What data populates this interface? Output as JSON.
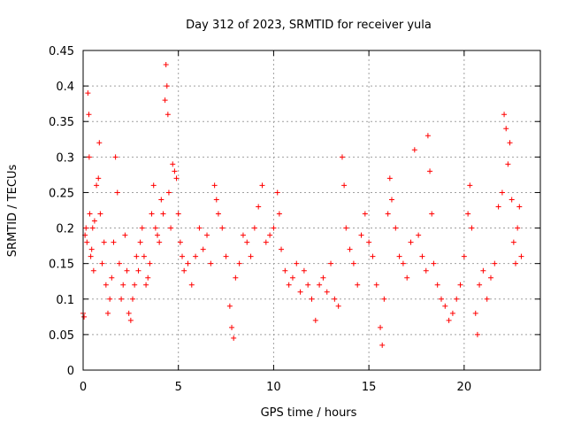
{
  "chart_data": {
    "type": "scatter",
    "title": "Day 312 of 2023, SRMTID for receiver yula",
    "xlabel": "GPS time / hours",
    "ylabel": "SRMTID / TECUs",
    "xlim": [
      0,
      24
    ],
    "ylim": [
      0,
      0.45
    ],
    "xticks": [
      0,
      5,
      10,
      15,
      20
    ],
    "yticks": [
      0,
      0.05,
      0.1,
      0.15,
      0.2,
      0.25,
      0.3,
      0.35,
      0.4,
      0.45
    ],
    "xtick_labels": [
      "0",
      "5",
      "10",
      "15",
      "20"
    ],
    "ytick_labels": [
      "0",
      "0.05",
      "0.1",
      "0.15",
      "0.2",
      "0.25",
      "0.3",
      "0.35",
      "0.4",
      "0.45"
    ],
    "grid": true,
    "marker": "+",
    "color": "#ff0000",
    "series": [
      {
        "name": "SRMTID",
        "points": [
          [
            0.0,
            0.08
          ],
          [
            0.05,
            0.075
          ],
          [
            0.1,
            0.19
          ],
          [
            0.15,
            0.2
          ],
          [
            0.2,
            0.18
          ],
          [
            0.25,
            0.39
          ],
          [
            0.3,
            0.36
          ],
          [
            0.32,
            0.3
          ],
          [
            0.35,
            0.22
          ],
          [
            0.4,
            0.16
          ],
          [
            0.45,
            0.17
          ],
          [
            0.5,
            0.2
          ],
          [
            0.55,
            0.14
          ],
          [
            0.6,
            0.21
          ],
          [
            0.7,
            0.26
          ],
          [
            0.8,
            0.27
          ],
          [
            0.85,
            0.32
          ],
          [
            0.9,
            0.22
          ],
          [
            1.0,
            0.15
          ],
          [
            1.1,
            0.18
          ],
          [
            1.2,
            0.12
          ],
          [
            1.3,
            0.08
          ],
          [
            1.4,
            0.1
          ],
          [
            1.5,
            0.13
          ],
          [
            1.6,
            0.18
          ],
          [
            1.7,
            0.3
          ],
          [
            1.8,
            0.25
          ],
          [
            1.9,
            0.15
          ],
          [
            2.0,
            0.1
          ],
          [
            2.1,
            0.12
          ],
          [
            2.2,
            0.19
          ],
          [
            2.3,
            0.14
          ],
          [
            2.4,
            0.08
          ],
          [
            2.5,
            0.07
          ],
          [
            2.6,
            0.1
          ],
          [
            2.7,
            0.12
          ],
          [
            2.8,
            0.16
          ],
          [
            2.9,
            0.14
          ],
          [
            3.0,
            0.18
          ],
          [
            3.1,
            0.2
          ],
          [
            3.2,
            0.16
          ],
          [
            3.3,
            0.12
          ],
          [
            3.4,
            0.13
          ],
          [
            3.5,
            0.15
          ],
          [
            3.6,
            0.22
          ],
          [
            3.7,
            0.26
          ],
          [
            3.8,
            0.2
          ],
          [
            3.9,
            0.19
          ],
          [
            4.0,
            0.18
          ],
          [
            4.1,
            0.24
          ],
          [
            4.2,
            0.22
          ],
          [
            4.3,
            0.38
          ],
          [
            4.35,
            0.43
          ],
          [
            4.4,
            0.4
          ],
          [
            4.45,
            0.36
          ],
          [
            4.5,
            0.25
          ],
          [
            4.6,
            0.2
          ],
          [
            4.7,
            0.29
          ],
          [
            4.8,
            0.28
          ],
          [
            4.9,
            0.27
          ],
          [
            5.0,
            0.22
          ],
          [
            5.1,
            0.18
          ],
          [
            5.2,
            0.16
          ],
          [
            5.3,
            0.14
          ],
          [
            5.5,
            0.15
          ],
          [
            5.7,
            0.12
          ],
          [
            5.9,
            0.16
          ],
          [
            6.1,
            0.2
          ],
          [
            6.3,
            0.17
          ],
          [
            6.5,
            0.19
          ],
          [
            6.7,
            0.15
          ],
          [
            6.9,
            0.26
          ],
          [
            7.0,
            0.24
          ],
          [
            7.1,
            0.22
          ],
          [
            7.3,
            0.2
          ],
          [
            7.5,
            0.16
          ],
          [
            7.7,
            0.09
          ],
          [
            7.8,
            0.06
          ],
          [
            7.9,
            0.045
          ],
          [
            8.0,
            0.13
          ],
          [
            8.2,
            0.15
          ],
          [
            8.4,
            0.19
          ],
          [
            8.6,
            0.18
          ],
          [
            8.8,
            0.16
          ],
          [
            9.0,
            0.2
          ],
          [
            9.2,
            0.23
          ],
          [
            9.4,
            0.26
          ],
          [
            9.6,
            0.18
          ],
          [
            9.8,
            0.19
          ],
          [
            10.0,
            0.2
          ],
          [
            10.2,
            0.25
          ],
          [
            10.3,
            0.22
          ],
          [
            10.4,
            0.17
          ],
          [
            10.6,
            0.14
          ],
          [
            10.8,
            0.12
          ],
          [
            11.0,
            0.13
          ],
          [
            11.2,
            0.15
          ],
          [
            11.4,
            0.11
          ],
          [
            11.6,
            0.14
          ],
          [
            11.8,
            0.12
          ],
          [
            12.0,
            0.1
          ],
          [
            12.2,
            0.07
          ],
          [
            12.4,
            0.12
          ],
          [
            12.6,
            0.13
          ],
          [
            12.8,
            0.11
          ],
          [
            13.0,
            0.15
          ],
          [
            13.2,
            0.1
          ],
          [
            13.4,
            0.09
          ],
          [
            13.6,
            0.3
          ],
          [
            13.7,
            0.26
          ],
          [
            13.8,
            0.2
          ],
          [
            14.0,
            0.17
          ],
          [
            14.2,
            0.15
          ],
          [
            14.4,
            0.12
          ],
          [
            14.6,
            0.19
          ],
          [
            14.8,
            0.22
          ],
          [
            15.0,
            0.18
          ],
          [
            15.2,
            0.16
          ],
          [
            15.4,
            0.12
          ],
          [
            15.6,
            0.06
          ],
          [
            15.7,
            0.035
          ],
          [
            15.8,
            0.1
          ],
          [
            16.0,
            0.22
          ],
          [
            16.1,
            0.27
          ],
          [
            16.2,
            0.24
          ],
          [
            16.4,
            0.2
          ],
          [
            16.6,
            0.16
          ],
          [
            16.8,
            0.15
          ],
          [
            17.0,
            0.13
          ],
          [
            17.2,
            0.18
          ],
          [
            17.4,
            0.31
          ],
          [
            17.6,
            0.19
          ],
          [
            17.8,
            0.16
          ],
          [
            18.0,
            0.14
          ],
          [
            18.1,
            0.33
          ],
          [
            18.2,
            0.28
          ],
          [
            18.3,
            0.22
          ],
          [
            18.4,
            0.15
          ],
          [
            18.6,
            0.12
          ],
          [
            18.8,
            0.1
          ],
          [
            19.0,
            0.09
          ],
          [
            19.2,
            0.07
          ],
          [
            19.4,
            0.08
          ],
          [
            19.6,
            0.1
          ],
          [
            19.8,
            0.12
          ],
          [
            20.0,
            0.16
          ],
          [
            20.2,
            0.22
          ],
          [
            20.3,
            0.26
          ],
          [
            20.4,
            0.2
          ],
          [
            20.6,
            0.08
          ],
          [
            20.7,
            0.05
          ],
          [
            20.8,
            0.12
          ],
          [
            21.0,
            0.14
          ],
          [
            21.2,
            0.1
          ],
          [
            21.4,
            0.13
          ],
          [
            21.6,
            0.15
          ],
          [
            21.8,
            0.23
          ],
          [
            22.0,
            0.25
          ],
          [
            22.1,
            0.36
          ],
          [
            22.2,
            0.34
          ],
          [
            22.3,
            0.29
          ],
          [
            22.4,
            0.32
          ],
          [
            22.5,
            0.24
          ],
          [
            22.6,
            0.18
          ],
          [
            22.7,
            0.15
          ],
          [
            22.8,
            0.2
          ],
          [
            22.9,
            0.23
          ],
          [
            23.0,
            0.16
          ]
        ]
      }
    ]
  }
}
